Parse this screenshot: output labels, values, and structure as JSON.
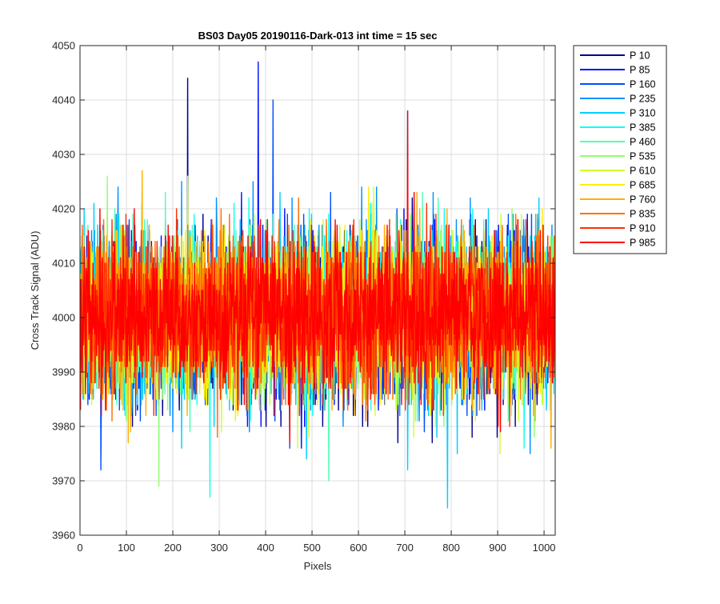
{
  "chart_data": {
    "type": "line",
    "title": "BS03 Day05 20190116-Dark-013 int time = 15 sec",
    "xlabel": "Pixels",
    "ylabel": "Cross Track Signal (ADU)",
    "xlim": [
      0,
      1024
    ],
    "ylim": [
      3960,
      4050
    ],
    "x_ticks": [
      0,
      100,
      200,
      300,
      400,
      500,
      600,
      700,
      800,
      900,
      1000
    ],
    "y_ticks": [
      3960,
      3970,
      3980,
      3990,
      4000,
      4010,
      4020,
      4030,
      4040,
      4050
    ],
    "grid": true,
    "legend_position": "outside-top-right",
    "x_range": [
      1,
      1024
    ],
    "series": [
      {
        "name": "P 10",
        "color": "#00008f",
        "mean": 3999.5,
        "spread": 7.5
      },
      {
        "name": "P 85",
        "color": "#0010ff",
        "mean": 3999.8,
        "spread": 7.5
      },
      {
        "name": "P 160",
        "color": "#0050ff",
        "mean": 4000.0,
        "spread": 7.5
      },
      {
        "name": "P 235",
        "color": "#0090ff",
        "mean": 4000.1,
        "spread": 7.4
      },
      {
        "name": "P 310",
        "color": "#00cfff",
        "mean": 4000.2,
        "spread": 7.4
      },
      {
        "name": "P 385",
        "color": "#10ffef",
        "mean": 4000.2,
        "spread": 7.3
      },
      {
        "name": "P 460",
        "color": "#50ffaf",
        "mean": 4000.3,
        "spread": 7.3
      },
      {
        "name": "P 535",
        "color": "#90ff6f",
        "mean": 4000.3,
        "spread": 7.2
      },
      {
        "name": "P 610",
        "color": "#cfff30",
        "mean": 4000.4,
        "spread": 7.2
      },
      {
        "name": "P 685",
        "color": "#ffef00",
        "mean": 4000.4,
        "spread": 7.2
      },
      {
        "name": "P 760",
        "color": "#ffaf00",
        "mean": 4000.5,
        "spread": 7.1
      },
      {
        "name": "P 835",
        "color": "#ff7000",
        "mean": 4000.5,
        "spread": 7.1
      },
      {
        "name": "P 910",
        "color": "#ff3000",
        "mean": 4000.6,
        "spread": 7.0
      },
      {
        "name": "P 985",
        "color": "#ff0000",
        "mean": 4000.8,
        "spread": 6.8
      }
    ],
    "annotated_extremes": [
      {
        "x": 232,
        "y": 4044
      },
      {
        "x": 384,
        "y": 4047
      },
      {
        "x": 416,
        "y": 4040
      },
      {
        "x": 706,
        "y": 4038
      },
      {
        "x": 792,
        "y": 3965
      },
      {
        "x": 280,
        "y": 3967
      },
      {
        "x": 536,
        "y": 3970
      },
      {
        "x": 170,
        "y": 3969
      }
    ]
  }
}
